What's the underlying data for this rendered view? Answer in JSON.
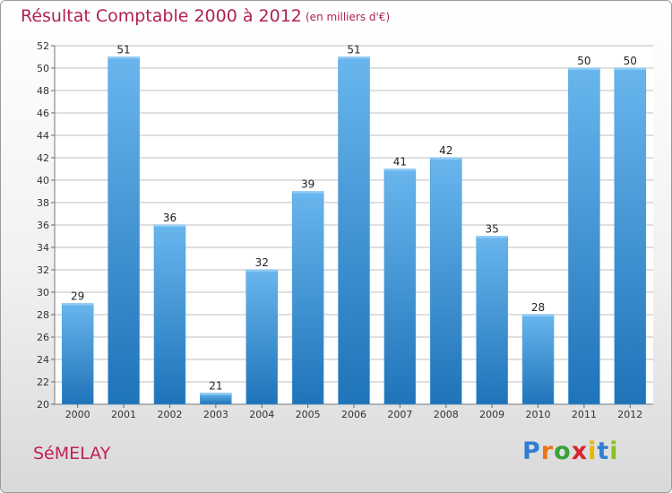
{
  "header": {
    "title": "Résultat Comptable 2000 à 2012",
    "subtitle": "(en milliers d'€)"
  },
  "footer": {
    "town": "SéMELAY",
    "logo_letters": [
      "P",
      "r",
      "o",
      "x",
      "i",
      "t",
      "i"
    ],
    "logo_colors": [
      "#2f7fd0",
      "#e8751a",
      "#3ba03b",
      "#d8262e",
      "#e6b800",
      "#2f7fd0",
      "#8bc21a"
    ]
  },
  "colors": {
    "bar": "#4a9fe0",
    "bar_light": "#69b6ee",
    "bar_dark": "#1f73b8",
    "grid": "#bfbfbf"
  },
  "chart_data": {
    "type": "bar",
    "title": "Résultat Comptable 2000 à 2012",
    "subtitle": "(en milliers d'€)",
    "xlabel": "",
    "ylabel": "",
    "categories": [
      "2000",
      "2001",
      "2002",
      "2003",
      "2004",
      "2005",
      "2006",
      "2007",
      "2008",
      "2009",
      "2010",
      "2011",
      "2012"
    ],
    "values": [
      29,
      51,
      36,
      21,
      32,
      39,
      51,
      41,
      42,
      35,
      28,
      50,
      50
    ],
    "ylim": [
      20,
      52
    ],
    "yticks": [
      20,
      22,
      24,
      26,
      28,
      30,
      32,
      34,
      36,
      38,
      40,
      42,
      44,
      46,
      48,
      50,
      52
    ],
    "grid": true
  }
}
